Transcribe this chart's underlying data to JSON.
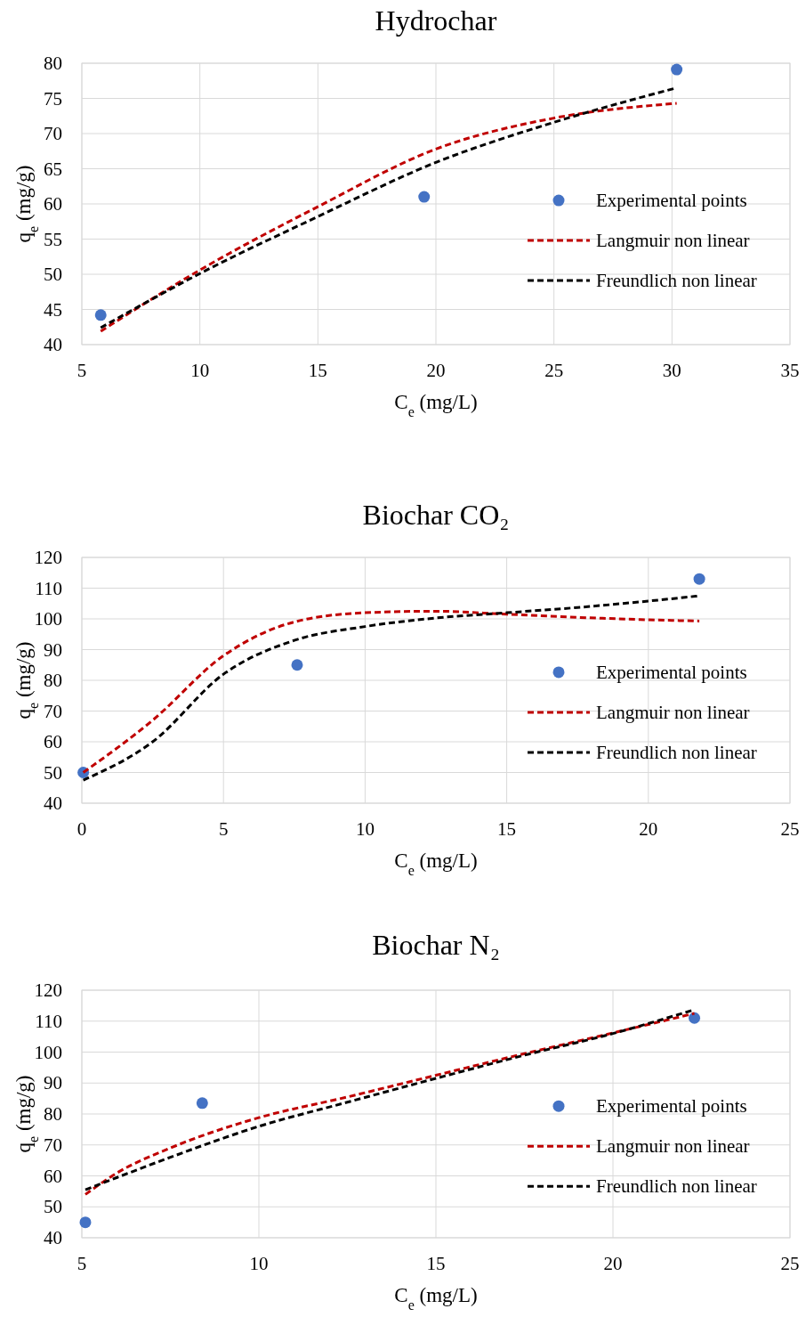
{
  "chart_data": [
    {
      "type": "scatter",
      "title": "Hydrochar",
      "xlabel": "C$_{e}$ (mg/L)",
      "ylabel": "q$_{e}$ (mg/g)",
      "xlim": [
        5,
        35
      ],
      "xticks": [
        5,
        10,
        15,
        20,
        25,
        30,
        35
      ],
      "ylim": [
        40,
        80
      ],
      "yticks": [
        40,
        45,
        50,
        55,
        60,
        65,
        70,
        75,
        80
      ],
      "grid": true,
      "legend": "right",
      "series": [
        {
          "name": "Experimental points",
          "marker": "circle",
          "color": "#4472c4",
          "x": [
            5.8,
            19.5,
            30.2
          ],
          "values": [
            44.2,
            61.0,
            79.1
          ]
        },
        {
          "name": "Langmuir non linear",
          "type": "line",
          "line_style": "dashed",
          "marker": "none",
          "color": "#c00000",
          "x": [
            5.8,
            10,
            15,
            20,
            25,
            30.2
          ],
          "values": [
            41.9,
            50.6,
            59.6,
            67.8,
            72.2,
            74.3
          ]
        },
        {
          "name": "Freundlich non linear",
          "type": "line",
          "line_style": "dashed",
          "marker": "none",
          "color": "#000000",
          "x": [
            5.8,
            10,
            15,
            20,
            25,
            30.2
          ],
          "values": [
            42.4,
            50.1,
            58.2,
            65.9,
            71.6,
            76.5
          ]
        }
      ]
    },
    {
      "type": "scatter",
      "title": "Biochar CO₂",
      "xlabel": "C$_{e}$ (mg/L)",
      "ylabel": "q$_{e}$ (mg/g)",
      "xlim": [
        0,
        25
      ],
      "xticks": [
        0,
        5,
        10,
        15,
        20,
        25
      ],
      "ylim": [
        40,
        120
      ],
      "yticks": [
        40,
        50,
        60,
        70,
        80,
        90,
        100,
        110,
        120
      ],
      "grid": true,
      "legend": "right",
      "series": [
        {
          "name": "Experimental points",
          "marker": "circle",
          "color": "#4472c4",
          "x": [
            0.05,
            7.6,
            21.8
          ],
          "values": [
            50,
            85,
            113
          ]
        },
        {
          "name": "Langmuir non linear",
          "type": "line",
          "line_style": "dashed",
          "marker": "none",
          "color": "#c00000",
          "x": [
            0.05,
            2.5,
            5,
            7.5,
            10,
            12.5,
            15,
            17.5,
            20,
            21.8
          ],
          "values": [
            50,
            67,
            88,
            99,
            102,
            102.5,
            101.5,
            100.5,
            99.7,
            99.3
          ]
        },
        {
          "name": "Freundlich non linear",
          "type": "line",
          "line_style": "dashed",
          "marker": "none",
          "color": "#000000",
          "x": [
            0.05,
            2.5,
            5,
            7.5,
            10,
            12.5,
            15,
            17.5,
            20,
            21.8
          ],
          "values": [
            47.5,
            60,
            82,
            93,
            97.5,
            100.3,
            102,
            103.7,
            105.8,
            107.5
          ]
        }
      ]
    },
    {
      "type": "scatter",
      "title": "Biochar N₂",
      "xlabel": "C$_{e}$ (mg/L)",
      "ylabel": "q$_{e}$ (mg/g)",
      "xlim": [
        5,
        25
      ],
      "xticks": [
        5,
        10,
        15,
        20,
        25
      ],
      "ylim": [
        40,
        120
      ],
      "yticks": [
        40,
        50,
        60,
        70,
        80,
        90,
        100,
        110,
        120
      ],
      "grid": true,
      "legend": "right",
      "series": [
        {
          "name": "Experimental points",
          "marker": "circle",
          "color": "#4472c4",
          "x": [
            5.1,
            8.4,
            22.3
          ],
          "values": [
            45,
            83.5,
            111
          ]
        },
        {
          "name": "Langmuir non linear",
          "type": "line",
          "line_style": "dashed",
          "marker": "none",
          "color": "#c00000",
          "x": [
            5.1,
            6,
            7.5,
            10,
            12.5,
            15,
            17.5,
            20,
            22.3
          ],
          "values": [
            54,
            61,
            69,
            78.8,
            85.5,
            92.5,
            99.5,
            106.2,
            112.5
          ]
        },
        {
          "name": "Freundlich non linear",
          "type": "line",
          "line_style": "dashed",
          "marker": "none",
          "color": "#000000",
          "x": [
            5.1,
            6,
            7.5,
            10,
            12.5,
            15,
            17.5,
            20,
            22.3
          ],
          "values": [
            55.5,
            59.5,
            66,
            76,
            83.8,
            91.5,
            99,
            106,
            113.7
          ]
        }
      ]
    }
  ]
}
